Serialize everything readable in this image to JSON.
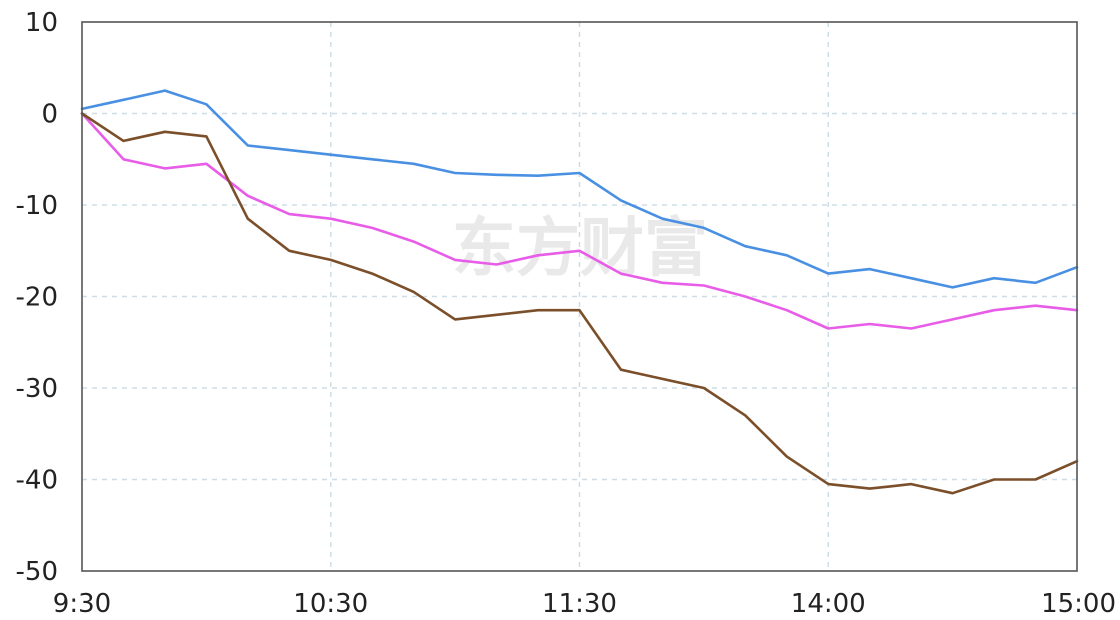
{
  "watermark": "东方财富",
  "chart_data": {
    "type": "line",
    "title": "",
    "xlabel": "",
    "ylabel": "",
    "x_ticks": [
      "9:30",
      "10:30",
      "11:30",
      "14:00",
      "15:00"
    ],
    "y_ticks": [
      10,
      0,
      -10,
      -20,
      -30,
      -40,
      -50
    ],
    "ylim": [
      -50,
      10
    ],
    "grid": true,
    "legend": "none",
    "x": [
      "9:30",
      "9:40",
      "9:50",
      "10:00",
      "10:10",
      "10:20",
      "10:30",
      "10:40",
      "10:50",
      "11:00",
      "11:10",
      "11:20",
      "11:30",
      "13:10",
      "13:20",
      "13:30",
      "13:40",
      "13:50",
      "14:00",
      "14:10",
      "14:20",
      "14:30",
      "14:40",
      "14:50",
      "15:00"
    ],
    "series": [
      {
        "color": "#4a90e2",
        "values": [
          0.5,
          1.5,
          2.5,
          1.0,
          -3.5,
          -4.0,
          -4.5,
          -5.0,
          -5.5,
          -6.5,
          -6.7,
          -6.8,
          -6.5,
          -9.5,
          -11.5,
          -12.5,
          -14.5,
          -15.5,
          -17.5,
          -17.0,
          -18.0,
          -19.0,
          -18.0,
          -18.5,
          -16.8
        ]
      },
      {
        "color": "#e85de8",
        "values": [
          0,
          -5.0,
          -6.0,
          -5.5,
          -9.0,
          -11.0,
          -11.5,
          -12.5,
          -14.0,
          -16.0,
          -16.5,
          -15.5,
          -15.0,
          -17.5,
          -18.5,
          -18.8,
          -20.0,
          -21.5,
          -23.5,
          -23.0,
          -23.5,
          -22.5,
          -21.5,
          -21.0,
          -21.5
        ]
      },
      {
        "color": "#7a4f2a",
        "values": [
          0,
          -3.0,
          -2.0,
          -2.5,
          -11.5,
          -15.0,
          -16.0,
          -17.5,
          -19.5,
          -22.5,
          -22.0,
          -21.5,
          -21.5,
          -28.0,
          -29.0,
          -30.0,
          -33.0,
          -37.5,
          -40.5,
          -41.0,
          -40.5,
          -41.5,
          -40.0,
          -40.0,
          -38.0
        ]
      }
    ]
  }
}
